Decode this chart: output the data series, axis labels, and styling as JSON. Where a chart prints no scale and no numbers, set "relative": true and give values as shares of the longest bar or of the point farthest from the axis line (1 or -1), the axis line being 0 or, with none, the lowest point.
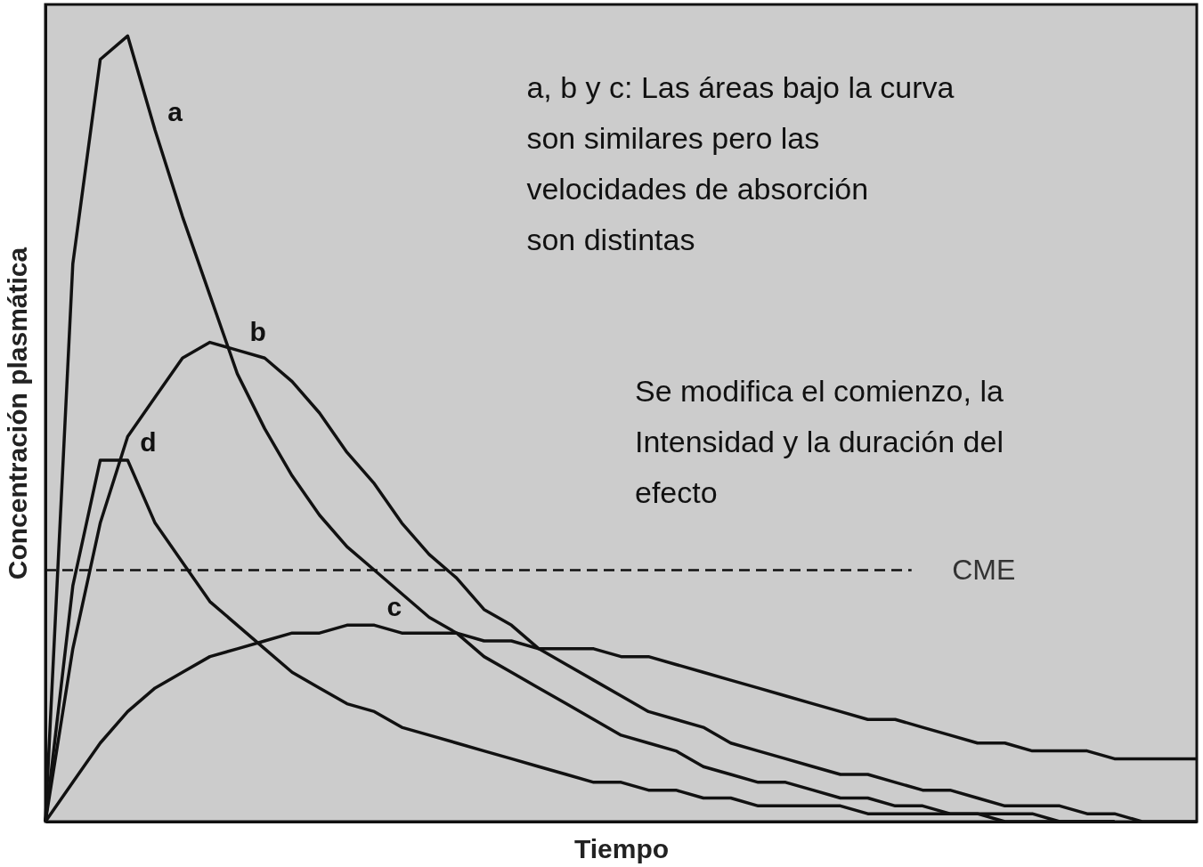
{
  "chart_data": {
    "type": "line",
    "relative": true,
    "xlabel": "Tiempo",
    "ylabel": "Concentración plasmática",
    "tick_labels": false,
    "grid": false,
    "legend": false,
    "marker": "none",
    "line_style": "solid",
    "categories": [
      null,
      null,
      null,
      null,
      null,
      null,
      null,
      null,
      null,
      null,
      null,
      null,
      null,
      null,
      null,
      null,
      null,
      null,
      null,
      null,
      null,
      null,
      null,
      null,
      null,
      null,
      null,
      null,
      null,
      null,
      null,
      null,
      null,
      null,
      null,
      null,
      null,
      null,
      null,
      null,
      null,
      null,
      null
    ],
    "series": [
      {
        "name": "a",
        "color": "#111111",
        "values": [
          0,
          0.71,
          0.97,
          1,
          0.88,
          0.77,
          0.67,
          0.57,
          0.5,
          0.44,
          0.39,
          0.35,
          0.32,
          0.29,
          0.26,
          0.24,
          0.21,
          0.19,
          0.17,
          0.15,
          0.13,
          0.11,
          0.1,
          0.09,
          0.07,
          0.06,
          0.05,
          0.05,
          0.04,
          0.03,
          0.03,
          0.02,
          0.02,
          0.01,
          0.01,
          0.01,
          0.01,
          0,
          0,
          0,
          null,
          null,
          null
        ]
      },
      {
        "name": "b",
        "color": "#111111",
        "values": [
          0,
          0.22,
          0.38,
          0.49,
          0.54,
          0.59,
          0.61,
          0.6,
          0.59,
          0.56,
          0.52,
          0.47,
          0.43,
          0.38,
          0.34,
          0.31,
          0.27,
          0.25,
          0.22,
          0.2,
          0.18,
          0.16,
          0.14,
          0.13,
          0.12,
          0.1,
          0.09,
          0.08,
          0.07,
          0.06,
          0.06,
          0.05,
          0.04,
          0.04,
          0.03,
          0.02,
          0.02,
          0.02,
          0.01,
          0.01,
          0,
          0,
          0
        ]
      },
      {
        "name": "c",
        "color": "#111111",
        "values": [
          0,
          0.05,
          0.1,
          0.14,
          0.17,
          0.19,
          0.21,
          0.22,
          0.23,
          0.24,
          0.24,
          0.25,
          0.25,
          0.24,
          0.24,
          0.24,
          0.23,
          0.23,
          0.22,
          0.22,
          0.22,
          0.21,
          0.21,
          0.2,
          0.19,
          0.18,
          0.17,
          0.16,
          0.15,
          0.14,
          0.13,
          0.13,
          0.12,
          0.11,
          0.1,
          0.1,
          0.09,
          0.09,
          0.09,
          0.08,
          0.08,
          0.08,
          0.08
        ]
      },
      {
        "name": "d",
        "color": "#111111",
        "values": [
          0,
          0.3,
          0.46,
          0.46,
          0.38,
          0.33,
          0.28,
          0.25,
          0.22,
          0.19,
          0.17,
          0.15,
          0.14,
          0.12,
          0.11,
          0.1,
          0.09,
          0.08,
          0.07,
          0.06,
          0.05,
          0.05,
          0.04,
          0.04,
          0.03,
          0.03,
          0.02,
          0.02,
          0.02,
          0.02,
          0.01,
          0.01,
          0.01,
          0.01,
          0.01,
          0,
          0,
          0,
          0,
          0,
          null,
          null,
          null
        ]
      }
    ],
    "ref_lines": [
      {
        "axis": "y",
        "value": 0.32,
        "label": "CME",
        "line_style": "dashed",
        "color": "#111111"
      }
    ],
    "annotations": [
      "a, b y c:  Las áreas bajo la curva\nson similares pero las\nvelocidades de absorción\nson distintas",
      "Se modifica el comienzo, la\nIntensidad y la duración del\nefecto"
    ]
  }
}
